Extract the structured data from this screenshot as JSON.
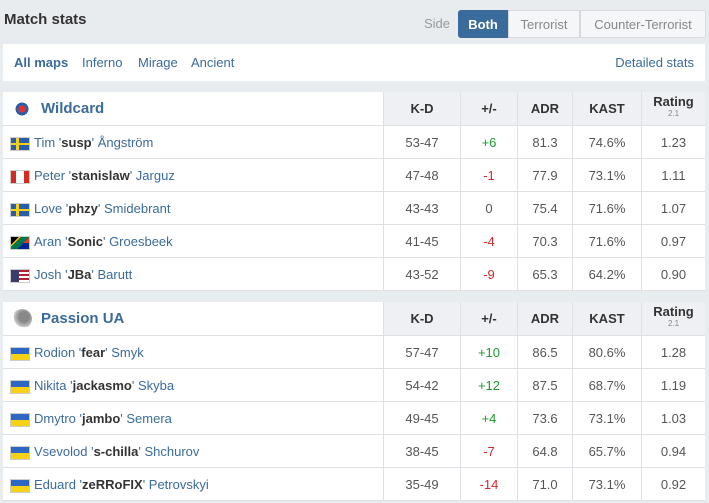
{
  "header": {
    "title": "Match stats",
    "side_label": "Side",
    "side_options": [
      "Both",
      "Terrorist",
      "Counter-Terrorist"
    ]
  },
  "maps": {
    "options": [
      "All maps",
      "Inferno",
      "Mirage",
      "Ancient"
    ],
    "detailed": "Detailed stats"
  },
  "columns": [
    "K-D",
    "+/-",
    "ADR",
    "KAST",
    "Rating"
  ],
  "rating_version": "2.1",
  "teams": [
    {
      "name": "Wildcard",
      "players": [
        {
          "name": [
            "Tim '",
            "susp",
            "' Ångström"
          ],
          "stats": [
            "53-47",
            "+6",
            "81.3",
            "74.6%",
            "1.23"
          ]
        },
        {
          "name": [
            "Peter '",
            "stanislaw",
            "' Jarguz"
          ],
          "stats": [
            "47-48",
            "-1",
            "77.9",
            "73.1%",
            "1.11"
          ]
        },
        {
          "name": [
            "Love '",
            "phzy",
            "' Smidebrant"
          ],
          "stats": [
            "43-43",
            "0",
            "75.4",
            "71.6%",
            "1.07"
          ]
        },
        {
          "name": [
            "Aran '",
            "Sonic",
            "' Groesbeek"
          ],
          "stats": [
            "41-45",
            "-4",
            "70.3",
            "71.6%",
            "0.97"
          ]
        },
        {
          "name": [
            "Josh '",
            "JBa",
            "' Barutt"
          ],
          "stats": [
            "43-52",
            "-9",
            "65.3",
            "64.2%",
            "0.90"
          ]
        }
      ]
    },
    {
      "name": "Passion UA",
      "players": [
        {
          "name": [
            "Rodion '",
            "fear",
            "' Smyk"
          ],
          "stats": [
            "57-47",
            "+10",
            "86.5",
            "80.6%",
            "1.28"
          ]
        },
        {
          "name": [
            "Nikita '",
            "jackasmo",
            "' Skyba"
          ],
          "stats": [
            "54-42",
            "+12",
            "87.5",
            "68.7%",
            "1.19"
          ]
        },
        {
          "name": [
            "Dmytro '",
            "jambo",
            "' Semera"
          ],
          "stats": [
            "49-45",
            "+4",
            "73.6",
            "73.1%",
            "1.03"
          ]
        },
        {
          "name": [
            "Vsevolod '",
            "s-chilla",
            "' Shchurov"
          ],
          "stats": [
            "38-45",
            "-7",
            "64.8",
            "65.7%",
            "0.94"
          ]
        },
        {
          "name": [
            "Eduard '",
            "zeRRoFIX",
            "' Petrovskyi"
          ],
          "stats": [
            "35-49",
            "-14",
            "71.0",
            "73.1%",
            "0.92"
          ]
        }
      ]
    }
  ]
}
